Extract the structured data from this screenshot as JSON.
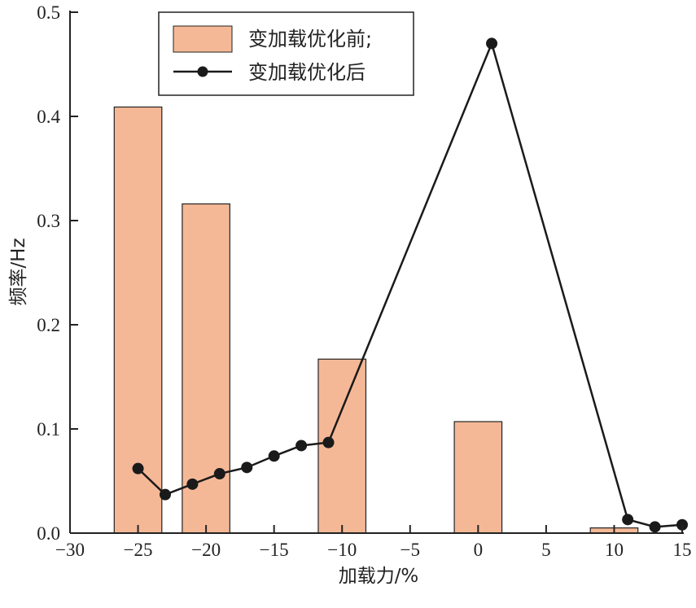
{
  "chart_data": {
    "type": "bar+line",
    "xlabel": "加载力/%",
    "ylabel": "频率/Hz",
    "xlim": [
      -30,
      15
    ],
    "ylim": [
      0,
      0.5
    ],
    "xticks": [
      -30,
      -25,
      -20,
      -15,
      -10,
      -5,
      0,
      5,
      10,
      15
    ],
    "xtick_labels": [
      "−30",
      "−25",
      "−20",
      "−15",
      "−10",
      "−5",
      "0",
      "5",
      "10",
      "15"
    ],
    "yticks": [
      0,
      0.1,
      0.2,
      0.3,
      0.4,
      0.5
    ],
    "ytick_labels": [
      "0.0",
      "0.1",
      "0.2",
      "0.3",
      "0.4",
      "0.5"
    ],
    "legend_position": "top-left",
    "bar_width": 3.5,
    "series": [
      {
        "name": "变加载优化前;",
        "kind": "bar",
        "color": "#f5b896",
        "edge_color": "#222222",
        "x": [
          -25,
          -20,
          -10,
          0,
          10
        ],
        "values": [
          0.409,
          0.316,
          0.167,
          0.107,
          0.005
        ]
      },
      {
        "name": "变加载优化后",
        "kind": "line",
        "color": "#1a1a1a",
        "x": [
          -25,
          -23,
          -21,
          -19,
          -17,
          -15,
          -13,
          -11,
          1,
          11,
          13,
          15
        ],
        "values": [
          0.062,
          0.037,
          0.047,
          0.057,
          0.063,
          0.074,
          0.084,
          0.087,
          0.47,
          0.013,
          0.006,
          0.008
        ]
      }
    ]
  }
}
